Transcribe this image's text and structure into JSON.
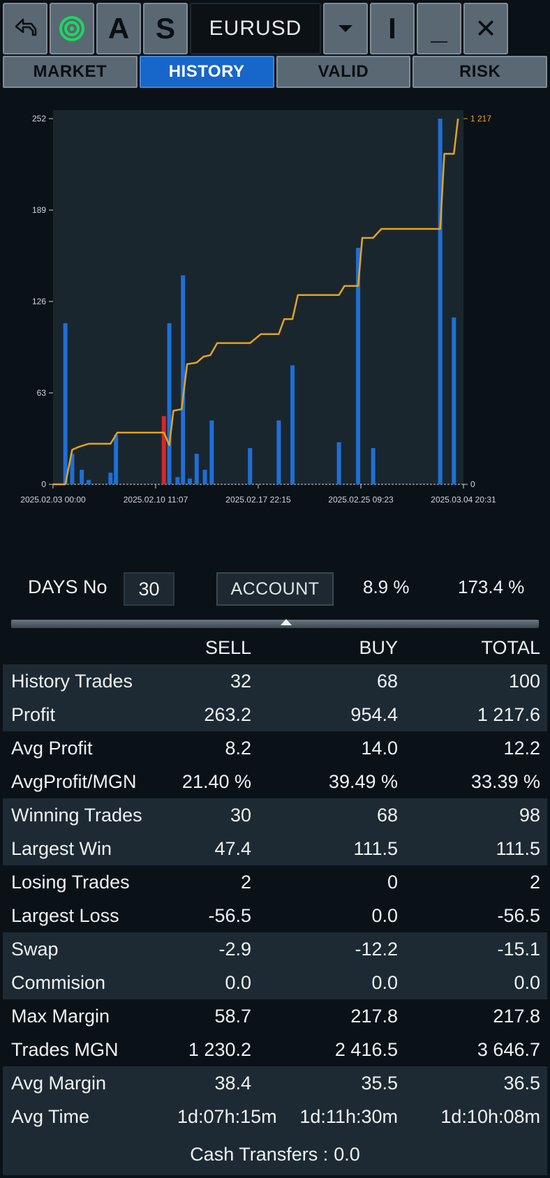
{
  "toolbar": {
    "back_icon": "back-arrow-icon",
    "target_icon": "target-icon",
    "btn_a": "A",
    "btn_s": "S",
    "symbol": "EURUSD",
    "dropdown_icon": "chevron-down-icon",
    "btn_i": "I",
    "minimize": "_",
    "close": "✕"
  },
  "tabs": [
    {
      "label": "MARKET",
      "active": false
    },
    {
      "label": "HISTORY",
      "active": true
    },
    {
      "label": "VALID",
      "active": false
    },
    {
      "label": "RISK",
      "active": false
    }
  ],
  "chart_data": {
    "type": "bar",
    "colors": {
      "bars": "#1f6fd6",
      "loss_bar": "#d9262a",
      "line": "#e3a41e",
      "background": "#1a262e"
    },
    "y_left_ticks": [
      "0",
      "63",
      "126",
      "189",
      "252"
    ],
    "y_left_range": [
      0,
      252
    ],
    "y_right_ticks": [
      "0",
      "1 217"
    ],
    "y_right_range": [
      0,
      1217
    ],
    "x_tick_labels": [
      "2025.02.03 00:00",
      "2025.02.10 11:07",
      "2025.02.17 22:15",
      "2025.02.25 09:23",
      "2025.03.04 20:31"
    ],
    "x_range_days": [
      0,
      30
    ],
    "bars": [
      {
        "t": 0.9,
        "v": 111,
        "loss": false
      },
      {
        "t": 1.4,
        "v": 21,
        "loss": false
      },
      {
        "t": 2.1,
        "v": 10,
        "loss": false
      },
      {
        "t": 2.6,
        "v": 3,
        "loss": false
      },
      {
        "t": 4.2,
        "v": 8,
        "loss": false
      },
      {
        "t": 4.6,
        "v": 34,
        "loss": false
      },
      {
        "t": 8.1,
        "v": 47,
        "loss": true
      },
      {
        "t": 8.5,
        "v": 111,
        "loss": false
      },
      {
        "t": 9.1,
        "v": 5,
        "loss": false
      },
      {
        "t": 9.5,
        "v": 144,
        "loss": false
      },
      {
        "t": 10.0,
        "v": 4,
        "loss": false
      },
      {
        "t": 10.5,
        "v": 21,
        "loss": false
      },
      {
        "t": 11.1,
        "v": 10,
        "loss": false
      },
      {
        "t": 11.6,
        "v": 44,
        "loss": false
      },
      {
        "t": 14.4,
        "v": 25,
        "loss": false
      },
      {
        "t": 16.5,
        "v": 44,
        "loss": false
      },
      {
        "t": 17.5,
        "v": 82,
        "loss": false
      },
      {
        "t": 20.9,
        "v": 29,
        "loss": false
      },
      {
        "t": 22.3,
        "v": 163,
        "loss": false
      },
      {
        "t": 23.4,
        "v": 25,
        "loss": false
      },
      {
        "t": 28.3,
        "v": 252,
        "loss": false
      },
      {
        "t": 29.3,
        "v": 115,
        "loss": false
      }
    ],
    "cumulative_line": [
      {
        "t": 0,
        "v": 0
      },
      {
        "t": 0.9,
        "v": 0
      },
      {
        "t": 1.4,
        "v": 115
      },
      {
        "t": 1.9,
        "v": 125
      },
      {
        "t": 2.6,
        "v": 135
      },
      {
        "t": 4.2,
        "v": 135
      },
      {
        "t": 4.7,
        "v": 172
      },
      {
        "t": 8.1,
        "v": 172
      },
      {
        "t": 8.5,
        "v": 130
      },
      {
        "t": 8.8,
        "v": 245
      },
      {
        "t": 9.4,
        "v": 250
      },
      {
        "t": 9.8,
        "v": 400
      },
      {
        "t": 10.5,
        "v": 405
      },
      {
        "t": 11.0,
        "v": 425
      },
      {
        "t": 11.5,
        "v": 430
      },
      {
        "t": 12.0,
        "v": 470
      },
      {
        "t": 14.4,
        "v": 470
      },
      {
        "t": 15.2,
        "v": 500
      },
      {
        "t": 16.5,
        "v": 500
      },
      {
        "t": 16.9,
        "v": 550
      },
      {
        "t": 17.5,
        "v": 550
      },
      {
        "t": 17.9,
        "v": 630
      },
      {
        "t": 20.9,
        "v": 630
      },
      {
        "t": 21.3,
        "v": 660
      },
      {
        "t": 22.3,
        "v": 660
      },
      {
        "t": 22.6,
        "v": 820
      },
      {
        "t": 23.4,
        "v": 820
      },
      {
        "t": 24.0,
        "v": 850
      },
      {
        "t": 28.3,
        "v": 850
      },
      {
        "t": 28.6,
        "v": 1100
      },
      {
        "t": 29.3,
        "v": 1100
      },
      {
        "t": 29.6,
        "v": 1217
      }
    ]
  },
  "controls": {
    "days_label": "DAYS No",
    "days_value": "30",
    "account_label": "ACCOUNT",
    "pct1": "8.9 %",
    "pct2": "173.4 %"
  },
  "table": {
    "headers": {
      "label": "",
      "sell": "SELL",
      "buy": "BUY",
      "total": "TOTAL"
    },
    "rows": [
      {
        "label": "History Trades",
        "sell": "32",
        "buy": "68",
        "total": "100"
      },
      {
        "label": "Profit",
        "sell": "263.2",
        "buy": "954.4",
        "total": "1 217.6"
      },
      {
        "label": "Avg Profit",
        "sell": "8.2",
        "buy": "14.0",
        "total": "12.2"
      },
      {
        "label": "AvgProfit/MGN",
        "sell": "21.40 %",
        "buy": "39.49 %",
        "total": "33.39 %"
      },
      {
        "label": "Winning Trades",
        "sell": "30",
        "buy": "68",
        "total": "98"
      },
      {
        "label": "Largest Win",
        "sell": "47.4",
        "buy": "111.5",
        "total": "111.5"
      },
      {
        "label": "Losing Trades",
        "sell": "2",
        "buy": "0",
        "total": "2"
      },
      {
        "label": "Largest Loss",
        "sell": "-56.5",
        "buy": "0.0",
        "total": "-56.5"
      },
      {
        "label": "Swap",
        "sell": "-2.9",
        "buy": "-12.2",
        "total": "-15.1"
      },
      {
        "label": "Commision",
        "sell": "0.0",
        "buy": "0.0",
        "total": "0.0"
      },
      {
        "label": "Max Margin",
        "sell": "58.7",
        "buy": "217.8",
        "total": "217.8"
      },
      {
        "label": "Trades MGN",
        "sell": "1 230.2",
        "buy": "2 416.5",
        "total": "3 646.7"
      },
      {
        "label": "Avg Margin",
        "sell": "38.4",
        "buy": "35.5",
        "total": "36.5"
      },
      {
        "label": "Avg Time",
        "sell": "1d:07h:15m",
        "buy": "1d:11h:30m",
        "total": "1d:10h:08m"
      }
    ]
  },
  "cash": {
    "label": "Cash Transfers :",
    "value": "0.0"
  }
}
